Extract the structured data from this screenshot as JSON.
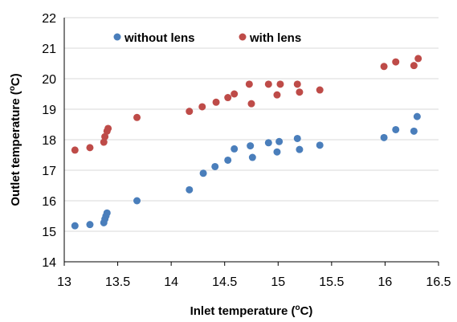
{
  "chart_data": {
    "type": "scatter",
    "xlabel_main": "Inlet temperature (",
    "xlabel_sup": "o",
    "xlabel_end": "C)",
    "ylabel_main": "Outlet temperature (",
    "ylabel_sup": "o",
    "ylabel_end": "C)",
    "xlim": [
      13,
      16.5
    ],
    "ylim": [
      14,
      22
    ],
    "xticks": [
      "13",
      "13.5",
      "14",
      "14.5",
      "15",
      "15.5",
      "16",
      "16.5"
    ],
    "yticks": [
      "14",
      "15",
      "16",
      "17",
      "18",
      "19",
      "20",
      "21",
      "22"
    ],
    "legend_position": "top",
    "grid": "horizontal",
    "series": [
      {
        "name": "without lens",
        "color": "#4a7ebb",
        "points": [
          {
            "x": 13.1,
            "y": 15.18
          },
          {
            "x": 13.24,
            "y": 15.22
          },
          {
            "x": 13.37,
            "y": 15.28
          },
          {
            "x": 13.38,
            "y": 15.4
          },
          {
            "x": 13.39,
            "y": 15.5
          },
          {
            "x": 13.4,
            "y": 15.6
          },
          {
            "x": 13.68,
            "y": 16.0
          },
          {
            "x": 14.17,
            "y": 16.36
          },
          {
            "x": 14.3,
            "y": 16.9
          },
          {
            "x": 14.41,
            "y": 17.12
          },
          {
            "x": 14.53,
            "y": 17.33
          },
          {
            "x": 14.59,
            "y": 17.7
          },
          {
            "x": 14.74,
            "y": 17.8
          },
          {
            "x": 14.76,
            "y": 17.42
          },
          {
            "x": 14.91,
            "y": 17.9
          },
          {
            "x": 14.99,
            "y": 17.6
          },
          {
            "x": 15.01,
            "y": 17.94
          },
          {
            "x": 15.18,
            "y": 18.04
          },
          {
            "x": 15.2,
            "y": 17.68
          },
          {
            "x": 15.39,
            "y": 17.82
          },
          {
            "x": 15.99,
            "y": 18.07
          },
          {
            "x": 16.1,
            "y": 18.33
          },
          {
            "x": 16.27,
            "y": 18.28
          },
          {
            "x": 16.3,
            "y": 18.76
          }
        ]
      },
      {
        "name": "with lens",
        "color": "#be4b48",
        "points": [
          {
            "x": 13.1,
            "y": 17.66
          },
          {
            "x": 13.24,
            "y": 17.74
          },
          {
            "x": 13.37,
            "y": 17.92
          },
          {
            "x": 13.38,
            "y": 18.1
          },
          {
            "x": 13.4,
            "y": 18.28
          },
          {
            "x": 13.41,
            "y": 18.37
          },
          {
            "x": 13.68,
            "y": 18.73
          },
          {
            "x": 14.17,
            "y": 18.93
          },
          {
            "x": 14.29,
            "y": 19.08
          },
          {
            "x": 14.42,
            "y": 19.23
          },
          {
            "x": 14.53,
            "y": 19.38
          },
          {
            "x": 14.59,
            "y": 19.5
          },
          {
            "x": 14.73,
            "y": 19.82
          },
          {
            "x": 14.75,
            "y": 19.18
          },
          {
            "x": 14.91,
            "y": 19.82
          },
          {
            "x": 14.99,
            "y": 19.47
          },
          {
            "x": 15.02,
            "y": 19.82
          },
          {
            "x": 15.18,
            "y": 19.82
          },
          {
            "x": 15.2,
            "y": 19.56
          },
          {
            "x": 15.39,
            "y": 19.63
          },
          {
            "x": 15.99,
            "y": 20.4
          },
          {
            "x": 16.1,
            "y": 20.55
          },
          {
            "x": 16.27,
            "y": 20.43
          },
          {
            "x": 16.31,
            "y": 20.66
          }
        ]
      }
    ]
  }
}
